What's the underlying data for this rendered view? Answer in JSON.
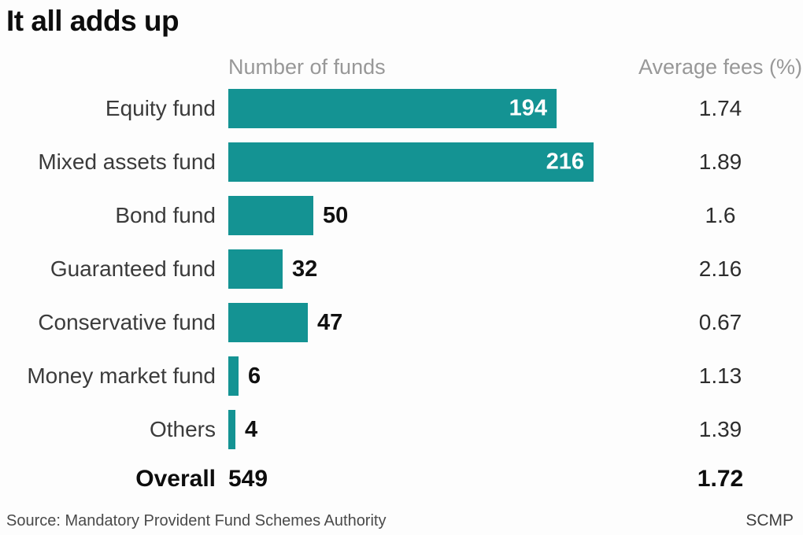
{
  "title": "It all adds up",
  "columns": {
    "funds": "Number of funds",
    "fees": "Average fees (%)"
  },
  "rows": [
    {
      "label": "Equity fund",
      "funds": 194,
      "fees": "1.74"
    },
    {
      "label": "Mixed assets fund",
      "funds": 216,
      "fees": "1.89"
    },
    {
      "label": "Bond fund",
      "funds": 50,
      "fees": "1.6"
    },
    {
      "label": "Guaranteed fund",
      "funds": 32,
      "fees": "2.16"
    },
    {
      "label": "Conservative fund",
      "funds": 47,
      "fees": "0.67"
    },
    {
      "label": "Money market fund",
      "funds": 6,
      "fees": "1.13"
    },
    {
      "label": "Others",
      "funds": 4,
      "fees": "1.39"
    }
  ],
  "overall": {
    "label": "Overall",
    "funds": 549,
    "fees": "1.72"
  },
  "footer": {
    "source": "Source: Mandatory Provident Fund Schemes Authority",
    "credit": "SCMP"
  },
  "colors": {
    "bar": "#149393",
    "header_text": "#989898",
    "bar_value_inside": "#ffffff",
    "bar_value_outside": "#111111"
  },
  "chart_data": {
    "type": "bar",
    "orientation": "horizontal",
    "title": "It all adds up",
    "categories": [
      "Equity fund",
      "Mixed assets fund",
      "Bond fund",
      "Guaranteed fund",
      "Conservative fund",
      "Money market fund",
      "Others"
    ],
    "series": [
      {
        "name": "Number of funds",
        "values": [
          194,
          216,
          50,
          32,
          47,
          6,
          4
        ]
      },
      {
        "name": "Average fees (%)",
        "values": [
          1.74,
          1.89,
          1.6,
          2.16,
          0.67,
          1.13,
          1.39
        ]
      }
    ],
    "overall": {
      "label": "Overall",
      "number_of_funds": 549,
      "average_fees_pct": 1.72
    },
    "xlim": [
      0,
      240
    ],
    "grid": false,
    "legend_position": "none",
    "value_labels": true,
    "bar_color": "#149393",
    "source": "Source: Mandatory Provident Fund Schemes Authority",
    "credit": "SCMP"
  }
}
